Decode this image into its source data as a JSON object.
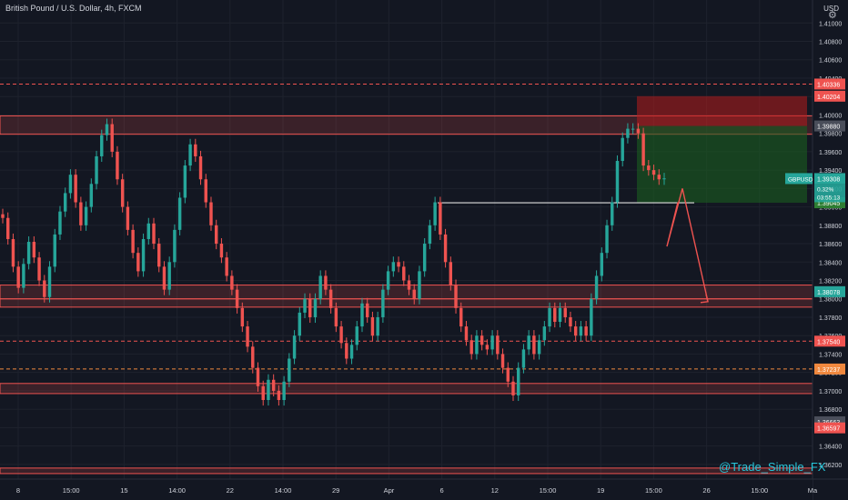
{
  "header": {
    "title": "British Pound / U.S. Dollar, 4h, FXCM",
    "currency": "USD"
  },
  "watermark": "@Trade_Simple_FX",
  "colors": {
    "background": "#131722",
    "up": "#26a69a",
    "down": "#ef5350",
    "zone": "#ef5350",
    "buy_zone": "#1b5e20",
    "sell_zone": "#b71c1c",
    "text": "#d1d4dc",
    "grid": "#1e222d"
  },
  "chart_data": {
    "type": "candlestick",
    "symbol": "GBPUSD",
    "timeframe": "4h",
    "ylim": [
      1.3604,
      1.4125
    ],
    "x_ticks": [
      "8",
      "15:00",
      "15",
      "14:00",
      "22",
      "14:00",
      "29",
      "Apr",
      "6",
      "12",
      "15:00",
      "19",
      "15:00",
      "26",
      "15:00",
      "Ma"
    ],
    "y_ticks": [
      "1.41000",
      "1.40800",
      "1.40600",
      "1.40400",
      "1.40200",
      "1.40000",
      "1.39800",
      "1.39600",
      "1.39400",
      "1.39200",
      "1.39000",
      "1.38800",
      "1.38600",
      "1.38400",
      "1.38200",
      "1.38000",
      "1.37800",
      "1.37600",
      "1.37400",
      "1.37200",
      "1.37000",
      "1.36800",
      "1.36600",
      "1.36400",
      "1.36200"
    ],
    "price_labels": [
      {
        "value": "1.40336",
        "color": "#ef5350"
      },
      {
        "value": "1.40204",
        "color": "#ef5350"
      },
      {
        "value": "1.39880",
        "color": "#4a4e5a"
      },
      {
        "value": "1.39308",
        "color": "#26a69a"
      },
      {
        "value": "1.39045",
        "color": "#2e7d32"
      },
      {
        "value": "1.38078",
        "color": "#26a69a"
      },
      {
        "value": "1.37540",
        "color": "#ef5350"
      },
      {
        "value": "1.37237",
        "color": "#f0883e"
      },
      {
        "value": "1.36663",
        "color": "#4a4e5a"
      },
      {
        "value": "1.36597",
        "color": "#ef5350"
      }
    ],
    "current": {
      "symbol": "GBPUSD",
      "price": "1.39308",
      "change": "0.32%",
      "countdown": "03:55:13"
    },
    "zones": [
      {
        "y1": 1.3999,
        "y2": 1.3979
      },
      {
        "y1": 1.3815,
        "y2": 1.38
      },
      {
        "y1": 1.38,
        "y2": 1.3791
      },
      {
        "y1": 1.3708,
        "y2": 1.3697
      },
      {
        "y1": 1.3616,
        "y2": 1.361
      }
    ],
    "dashed_levels": [
      {
        "value": 1.40336,
        "color": "#ef5350"
      },
      {
        "value": 1.3754,
        "color": "#ef5350"
      },
      {
        "value": 1.37237,
        "color": "#f0883e"
      }
    ],
    "resistance_line": {
      "value": 1.39045
    },
    "position": {
      "entry": 1.3988,
      "stop": 1.40204,
      "target": 1.39045
    },
    "closes": [
      1.3888,
      1.3865,
      1.3835,
      1.3812,
      1.3838,
      1.3862,
      1.3845,
      1.382,
      1.3802,
      1.3835,
      1.387,
      1.3895,
      1.3915,
      1.3935,
      1.3905,
      1.388,
      1.39,
      1.3925,
      1.3955,
      1.3978,
      1.399,
      1.396,
      1.393,
      1.39,
      1.3875,
      1.385,
      1.383,
      1.3865,
      1.3882,
      1.386,
      1.3835,
      1.381,
      1.384,
      1.3875,
      1.391,
      1.3945,
      1.3968,
      1.3955,
      1.393,
      1.3905,
      1.388,
      1.386,
      1.3845,
      1.3825,
      1.381,
      1.379,
      1.377,
      1.3748,
      1.3725,
      1.3705,
      1.369,
      1.3712,
      1.37,
      1.369,
      1.371,
      1.3735,
      1.376,
      1.3785,
      1.38,
      1.378,
      1.38,
      1.3825,
      1.381,
      1.379,
      1.377,
      1.3752,
      1.3735,
      1.375,
      1.377,
      1.3795,
      1.378,
      1.376,
      1.378,
      1.381,
      1.383,
      1.384,
      1.3835,
      1.382,
      1.381,
      1.38,
      1.383,
      1.386,
      1.388,
      1.3905,
      1.387,
      1.384,
      1.3815,
      1.379,
      1.377,
      1.3755,
      1.374,
      1.376,
      1.375,
      1.3745,
      1.376,
      1.374,
      1.3725,
      1.371,
      1.3695,
      1.3725,
      1.3745,
      1.376,
      1.374,
      1.3755,
      1.377,
      1.379,
      1.3775,
      1.379,
      1.378,
      1.377,
      1.376,
      1.377,
      1.376,
      1.38,
      1.3825,
      1.385,
      1.388,
      1.3905,
      1.395,
      1.3975,
      1.3985,
      1.3985,
      1.398,
      1.3945,
      1.394,
      1.3935,
      1.393,
      1.3931
    ],
    "projection": [
      {
        "x": 745,
        "y": 1.3905
      },
      {
        "x": 733,
        "y": 1.3857
      },
      {
        "x": 750,
        "y": 1.392
      },
      {
        "x": 778,
        "y": 1.3797
      }
    ]
  }
}
